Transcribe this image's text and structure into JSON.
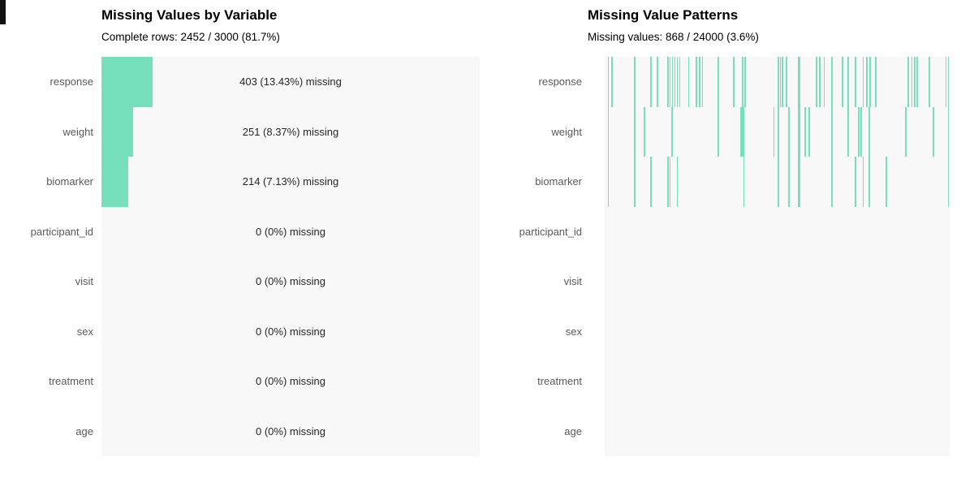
{
  "colors": {
    "accent_green": "#76dfbc",
    "panel_background": "#f8f8f8",
    "axis_label": "#595959",
    "annotation_text": "#262626",
    "title_text": "#000000"
  },
  "chart_data": [
    {
      "type": "bar",
      "orientation": "horizontal",
      "title": "Missing Values by Variable",
      "subtitle": "Complete rows: 2452 / 3000 (81.7%)",
      "categories": [
        "response",
        "weight",
        "biomarker",
        "participant_id",
        "visit",
        "sex",
        "treatment",
        "age"
      ],
      "missing_count": [
        403,
        251,
        214,
        0,
        0,
        0,
        0,
        0
      ],
      "missing_pct": [
        13.43,
        8.37,
        7.13,
        0,
        0,
        0,
        0,
        0
      ],
      "bar_labels": [
        "403 (13.43%) missing",
        "251 (8.37%) missing",
        "214 (7.13%) missing",
        "0 (0%) missing",
        "0 (0%) missing",
        "0 (0%) missing",
        "0 (0%) missing",
        "0 (0%) missing"
      ],
      "xlim": [
        0,
        100
      ],
      "grid": false,
      "legend": "none"
    },
    {
      "type": "heatmap",
      "title": "Missing Value Patterns",
      "subtitle": "Missing values: 868 / 24000 (3.6%)",
      "categories": [
        "response",
        "weight",
        "biomarker",
        "participant_id",
        "visit",
        "sex",
        "treatment",
        "age"
      ],
      "note": "each vertical stroke marks missing observations at that record position; x is fraction of 3000 records, second value is stroke width in px",
      "patterns": {
        "response": [
          [
            0.009,
            1.6
          ],
          [
            0.019,
            1.6
          ],
          [
            0.085,
            1.6
          ],
          [
            0.132,
            1.6
          ],
          [
            0.151,
            1.6
          ],
          [
            0.181,
            1.6
          ],
          [
            0.188,
            1.6
          ],
          [
            0.195,
            1.6
          ],
          [
            0.202,
            1.6
          ],
          [
            0.209,
            1.6
          ],
          [
            0.216,
            1.6
          ],
          [
            0.242,
            1.6
          ],
          [
            0.264,
            1.6
          ],
          [
            0.273,
            1.6
          ],
          [
            0.282,
            1.6
          ],
          [
            0.327,
            1.6
          ],
          [
            0.372,
            1.6
          ],
          [
            0.398,
            2.2
          ],
          [
            0.405,
            1.6
          ],
          [
            0.501,
            1.6
          ],
          [
            0.508,
            1.6
          ],
          [
            0.513,
            1.6
          ],
          [
            0.525,
            1.6
          ],
          [
            0.56,
            2.6
          ],
          [
            0.612,
            1.6
          ],
          [
            0.621,
            1.6
          ],
          [
            0.635,
            1.6
          ],
          [
            0.656,
            2.2
          ],
          [
            0.687,
            1.6
          ],
          [
            0.704,
            1.6
          ],
          [
            0.725,
            1.6
          ],
          [
            0.748,
            1.6
          ],
          [
            0.758,
            1.6
          ],
          [
            0.767,
            1.6
          ],
          [
            0.784,
            1.6
          ],
          [
            0.878,
            1.6
          ],
          [
            0.889,
            1.6
          ],
          [
            0.896,
            2.6
          ],
          [
            0.904,
            1.6
          ],
          [
            0.939,
            1.6
          ],
          [
            0.988,
            1.6
          ],
          [
            0.995,
            1.6
          ]
        ],
        "weight": [
          [
            0.009,
            1.6
          ],
          [
            0.085,
            1.6
          ],
          [
            0.113,
            1.6
          ],
          [
            0.193,
            1.6
          ],
          [
            0.327,
            1.6
          ],
          [
            0.393,
            2.6
          ],
          [
            0.4,
            1.6
          ],
          [
            0.489,
            1.6
          ],
          [
            0.501,
            1.6
          ],
          [
            0.532,
            1.6
          ],
          [
            0.56,
            2.6
          ],
          [
            0.579,
            1.6
          ],
          [
            0.591,
            1.6
          ],
          [
            0.656,
            2.2
          ],
          [
            0.704,
            1.6
          ],
          [
            0.734,
            1.6
          ],
          [
            0.741,
            1.6
          ],
          [
            0.765,
            1.6
          ],
          [
            0.871,
            1.6
          ],
          [
            0.951,
            1.6
          ],
          [
            0.995,
            1.6
          ]
        ],
        "biomarker": [
          [
            0.009,
            1.6
          ],
          [
            0.085,
            1.6
          ],
          [
            0.132,
            1.6
          ],
          [
            0.181,
            1.6
          ],
          [
            0.188,
            1.6
          ],
          [
            0.209,
            1.6
          ],
          [
            0.402,
            1.6
          ],
          [
            0.501,
            1.6
          ],
          [
            0.532,
            1.6
          ],
          [
            0.56,
            2.6
          ],
          [
            0.656,
            2.2
          ],
          [
            0.725,
            1.6
          ],
          [
            0.748,
            1.6
          ],
          [
            0.765,
            1.6
          ],
          [
            0.814,
            1.6
          ],
          [
            0.995,
            1.6
          ]
        ]
      },
      "rows_with_missing": [
        "response",
        "weight",
        "biomarker"
      ],
      "grid": false,
      "legend": "none"
    }
  ]
}
